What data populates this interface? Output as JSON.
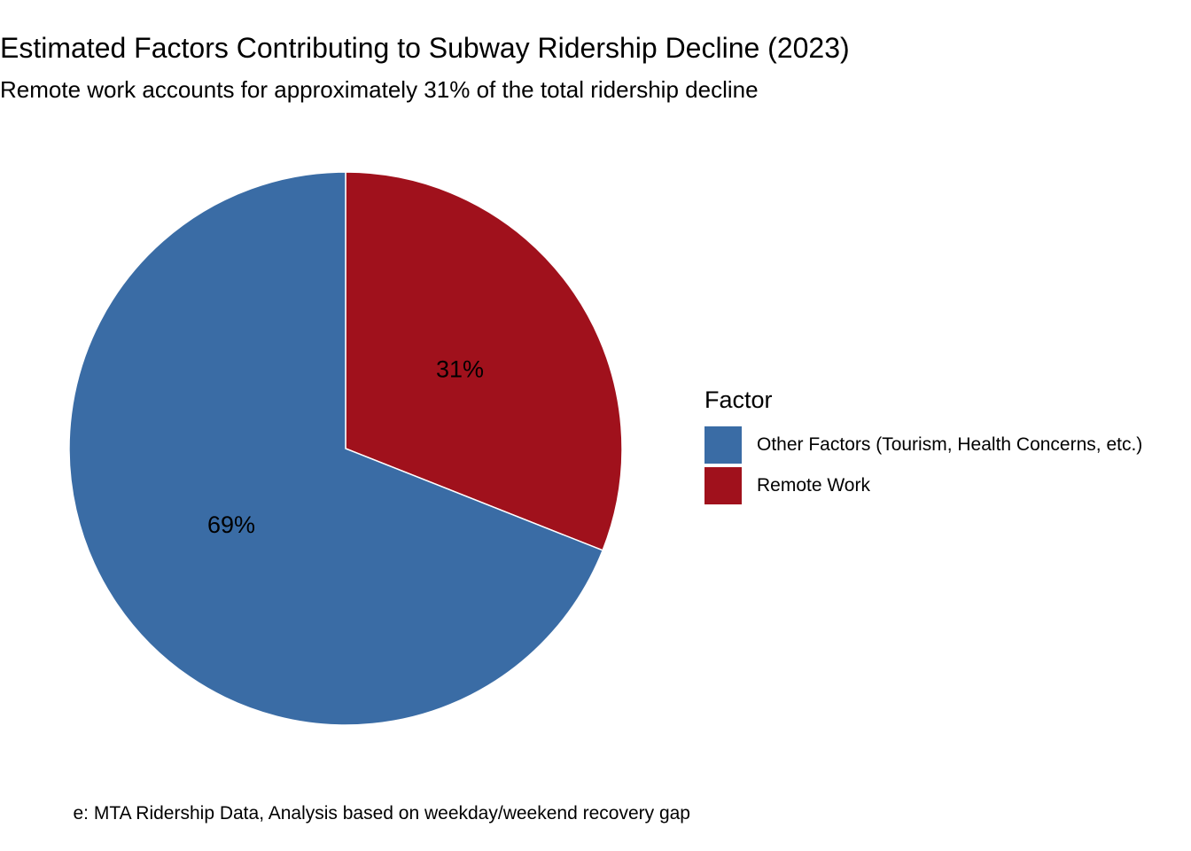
{
  "chart_data": {
    "type": "pie",
    "title": "Estimated Factors Contributing to Subway Ridership Decline (2023)",
    "subtitle": "Remote work accounts for approximately 31% of the total ridership decline",
    "caption": "e: MTA Ridership Data, Analysis based on weekday/weekend recovery gap",
    "legend_title": "Factor",
    "legend_position": "right",
    "slices": [
      {
        "label": "Remote Work",
        "value": 31,
        "display": "31%",
        "color": "#A0111C"
      },
      {
        "label": "Other Factors (Tourism, Health Concerns, etc.)",
        "value": 69,
        "display": "69%",
        "color": "#3A6CA5"
      }
    ],
    "legend_order": [
      1,
      0
    ]
  }
}
